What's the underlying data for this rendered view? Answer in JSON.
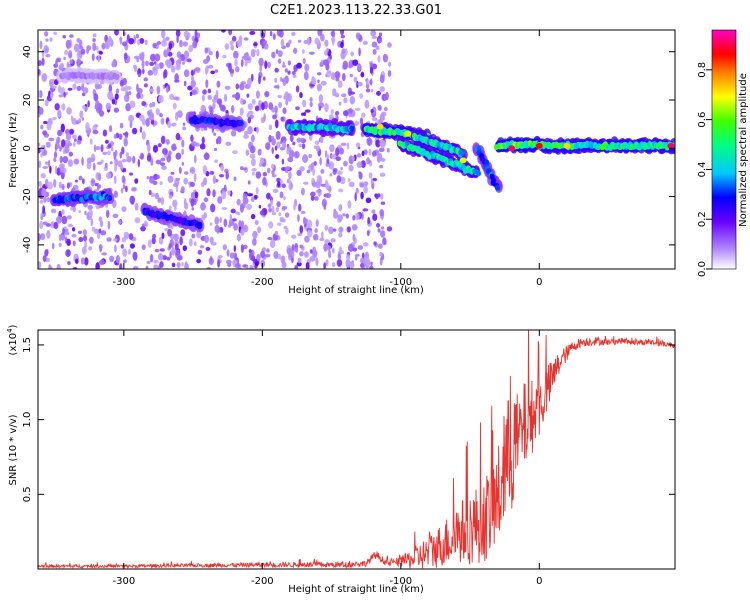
{
  "title": "C2E1.2023.113.22.33.G01",
  "chart_data": [
    {
      "type": "heatmap",
      "xlabel": "Height of straight line (km)",
      "ylabel": "Frequency (Hz)",
      "xlim": [
        -362,
        98
      ],
      "ylim": [
        -50,
        49
      ],
      "xticks": [
        -300,
        -200,
        -100,
        0
      ],
      "xtick_labels": [
        "-300",
        "-200",
        "-100",
        "0"
      ],
      "yticks": [
        -40,
        -20,
        0,
        20,
        40
      ],
      "ytick_labels": [
        "-40",
        "-20",
        "0",
        "20",
        "40"
      ],
      "colorbar": {
        "label": "Normalized spectral amplitude",
        "range": [
          0,
          0.96
        ],
        "ticks": [
          0.0,
          0.2,
          0.4,
          0.6,
          0.8
        ],
        "tick_labels": [
          "0.0",
          "0.2",
          "0.4",
          "0.6",
          "0.8"
        ],
        "colormap": [
          "#ffffff",
          "#b38cff",
          "#6600ff",
          "#0000ff",
          "#00c8ff",
          "#00ff80",
          "#40ff00",
          "#ffff00",
          "#ff8000",
          "#ff0000",
          "#ff00c8"
        ]
      },
      "features": [
        {
          "x": [
            -350,
            -310
          ],
          "y": [
            -21,
            -20
          ],
          "amplitude": 0.35
        },
        {
          "x": [
            -345,
            -305
          ],
          "y": [
            30,
            30
          ],
          "amplitude": 0.1
        },
        {
          "x": [
            -285,
            -245
          ],
          "y": [
            -26,
            -32
          ],
          "amplitude": 0.3
        },
        {
          "x": [
            -252,
            -215
          ],
          "y": [
            12,
            10
          ],
          "amplitude": 0.3
        },
        {
          "x": [
            -180,
            -135
          ],
          "y": [
            9,
            8
          ],
          "amplitude": 0.45
        },
        {
          "x": [
            -125,
            -80
          ],
          "y": [
            8,
            5
          ],
          "amplitude": 0.55
        },
        {
          "x": [
            -100,
            -45
          ],
          "y": [
            2,
            -10
          ],
          "amplitude": 0.5
        },
        {
          "x": [
            -90,
            -55
          ],
          "y": [
            5,
            -2
          ],
          "amplitude": 0.5
        },
        {
          "x": [
            -45,
            -30
          ],
          "y": [
            0,
            -16
          ],
          "amplitude": 0.35
        },
        {
          "x": [
            -30,
            0
          ],
          "y": [
            1,
            2
          ],
          "amplitude": 0.6
        },
        {
          "x": [
            0,
            98
          ],
          "y": [
            1,
            1
          ],
          "amplitude": 0.55
        }
      ],
      "bright_spots": [
        {
          "x": -20,
          "y": 0,
          "amplitude": 0.95
        },
        {
          "x": 0,
          "y": 1,
          "amplitude": 0.9
        },
        {
          "x": 20,
          "y": 1,
          "amplitude": 0.75
        },
        {
          "x": 95,
          "y": 1,
          "amplitude": 0.95
        },
        {
          "x": -115,
          "y": 9,
          "amplitude": 0.75
        },
        {
          "x": -95,
          "y": 6,
          "amplitude": 0.7
        },
        {
          "x": -55,
          "y": -5,
          "amplitude": 0.7
        }
      ],
      "noise_region": [
        -362,
        -108
      ]
    },
    {
      "type": "line",
      "xlabel": "Height of straight line (km)",
      "ylabel": "SNR (10 * v/v)",
      "y_multiplier": "(x10",
      "y_multiplier_exponent": "4",
      "y_multiplier_close": ")",
      "xlim": [
        -362,
        98
      ],
      "ylim": [
        0,
        1.6
      ],
      "xticks": [
        -300,
        -200,
        -100,
        0
      ],
      "xtick_labels": [
        "-300",
        "-200",
        "-100",
        "0"
      ],
      "yticks": [
        0.5,
        1.0,
        1.5
      ],
      "ytick_labels": [
        "0.5",
        "1.0",
        "1.5"
      ],
      "series": [
        {
          "color": "#e8322d",
          "x": [
            -362,
            -300,
            -200,
            -140,
            -125,
            -118,
            -110,
            -100,
            -90,
            -80,
            -70,
            -60,
            -50,
            -40,
            -30,
            -25,
            -20,
            -15,
            -10,
            -5,
            0,
            5,
            10,
            15,
            20,
            25,
            30,
            40,
            50,
            60,
            70,
            80,
            90,
            98
          ],
          "y": [
            0.02,
            0.02,
            0.03,
            0.03,
            0.04,
            0.1,
            0.04,
            0.05,
            0.08,
            0.12,
            0.18,
            0.25,
            0.3,
            0.35,
            0.5,
            0.7,
            0.85,
            0.9,
            1.0,
            1.05,
            1.1,
            1.2,
            1.3,
            1.4,
            1.45,
            1.5,
            1.52,
            1.53,
            1.52,
            1.53,
            1.52,
            1.52,
            1.51,
            1.5
          ],
          "noise": [
            0.01,
            0.01,
            0.015,
            0.02,
            0.02,
            0.03,
            0.02,
            0.03,
            0.08,
            0.12,
            0.15,
            0.2,
            0.25,
            0.28,
            0.35,
            0.4,
            0.45,
            0.3,
            0.3,
            0.25,
            0.2,
            0.18,
            0.12,
            0.08,
            0.05,
            0.04,
            0.03,
            0.03,
            0.02,
            0.02,
            0.02,
            0.02,
            0.02,
            0.02
          ]
        }
      ]
    }
  ]
}
